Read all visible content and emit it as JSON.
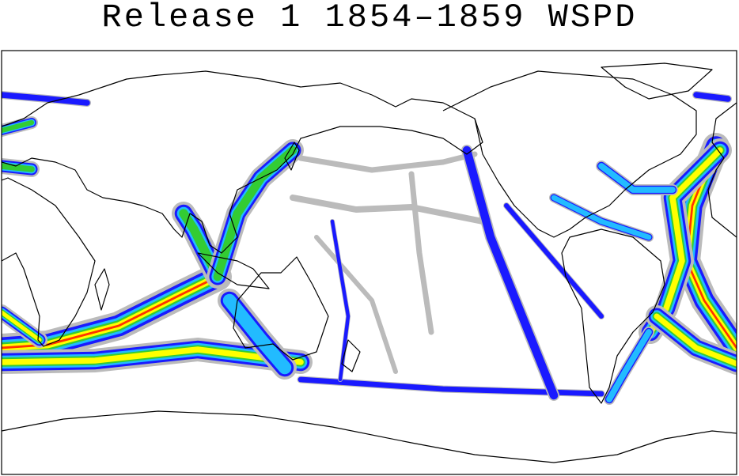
{
  "header": {
    "title": "Release 1 1854–1859 WSPD"
  }
}
